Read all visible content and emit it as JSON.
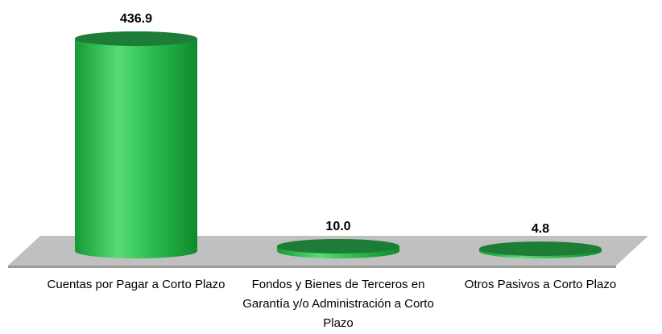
{
  "chart_data": {
    "type": "cylinder",
    "categories": [
      "Cuentas por Pagar a Corto Plazo",
      "Fondos y Bienes  de Terceros en Garantía y/o Administración a Corto Plazo",
      "Otros Pasivos a Corto Plazo"
    ],
    "values": [
      436.9,
      10.0,
      4.8
    ],
    "value_labels": [
      "436.9",
      "10.0",
      "4.8"
    ],
    "color": "#2bb34a"
  }
}
